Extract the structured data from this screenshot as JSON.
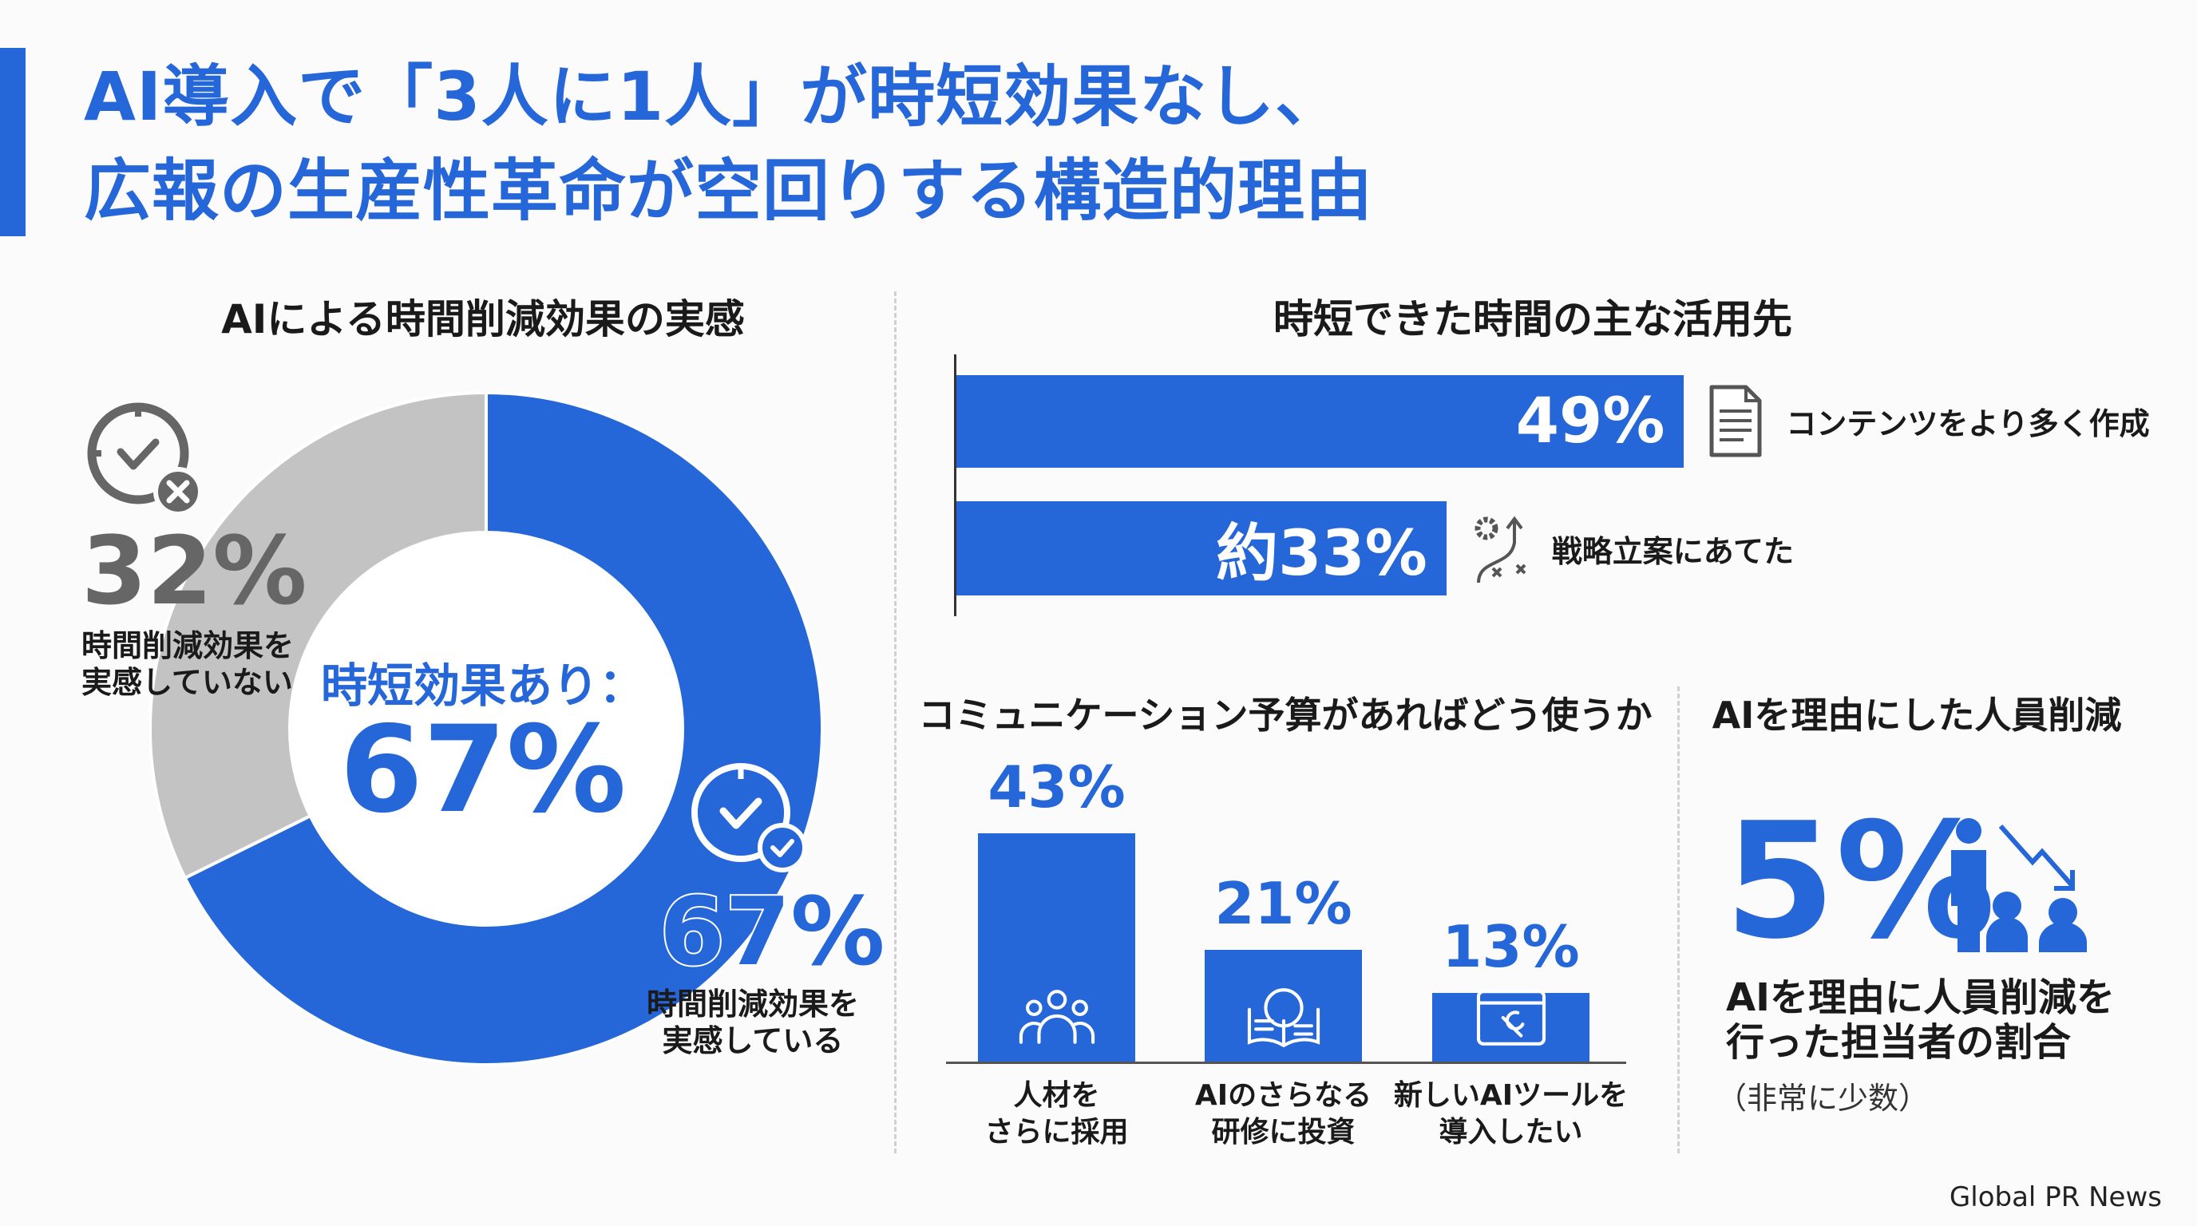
{
  "header": {
    "title_line1": "AI導入で「3人に1人」が時短効果なし、",
    "title_line2": "広報の生産性革命が空回りする構造的理由"
  },
  "colors": {
    "accent": "#2566d9",
    "gray_slice": "#c3c3c3",
    "gray_text": "#666666"
  },
  "chart_data": [
    {
      "type": "pie",
      "title": "AIによる時間削減効果の実感",
      "center_label": "時短効果あり：",
      "center_value": "67%",
      "slices": [
        {
          "label": "時間削減効果を実感している",
          "value": 67,
          "display": "67%",
          "label_lines": [
            "時間削減効果を",
            "実感している"
          ],
          "color": "#2566d9",
          "icon": "clock-check-icon"
        },
        {
          "label": "時間削減効果を実感していない",
          "value": 32,
          "display": "32%",
          "label_lines": [
            "時間削減効果を",
            "実感していない"
          ],
          "color": "#c3c3c3",
          "icon": "clock-x-icon"
        }
      ]
    },
    {
      "type": "bar",
      "orientation": "horizontal",
      "title": "時短できた時間の主な活用先",
      "categories": [
        "コンテンツをより多く作成",
        "戦略立案にあてた"
      ],
      "values": [
        49,
        33
      ],
      "value_labels": [
        "49%",
        "約33%"
      ],
      "icons": [
        "document-icon",
        "strategy-icon"
      ]
    },
    {
      "type": "bar",
      "title": "コミュニケーション予算があればどう使うか",
      "categories": [
        [
          "人材を",
          "さらに採用"
        ],
        [
          "AIのさらなる",
          "研修に投資"
        ],
        [
          "新しいAIツールを",
          "導入したい"
        ]
      ],
      "values": [
        43,
        21,
        13
      ],
      "value_labels": [
        "43%",
        "21%",
        "13%"
      ],
      "icons": [
        "people-icon",
        "brain-book-icon",
        "browser-tool-icon"
      ]
    }
  ],
  "headcount": {
    "title": "AIを理由にした人員削減",
    "value": "5%",
    "desc_line1": "AIを理由に人員削減を",
    "desc_line2": "行った担当者の割合",
    "note": "（非常に少数）",
    "icon": "people-decrease-icon"
  },
  "footer": {
    "source": "Global PR News"
  }
}
